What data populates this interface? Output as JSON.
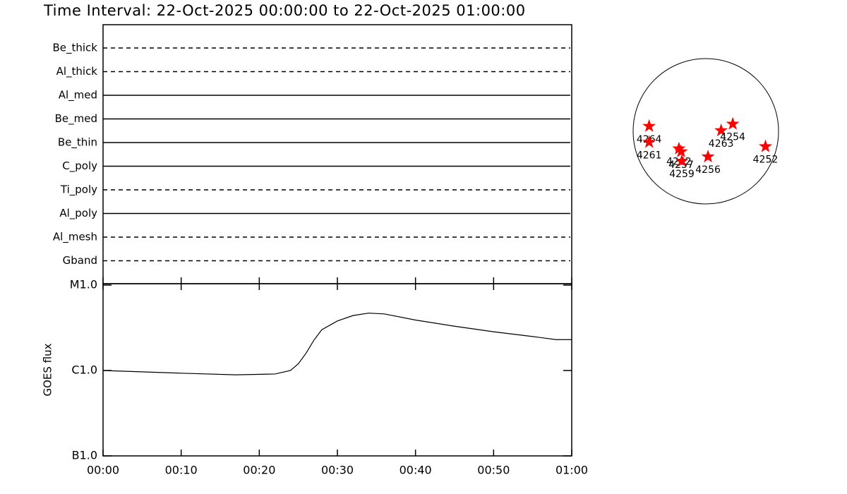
{
  "chart_data": [
    {
      "type": "filter_timeline",
      "title": "Time Interval: 22-Oct-2025 00:00:00 to 22-Oct-2025 01:00:00",
      "categories": [
        "Be_thick",
        "Al_thick",
        "Al_med",
        "Be_med",
        "Be_thin",
        "C_poly",
        "Ti_poly",
        "Al_poly",
        "Al_mesh",
        "Gband"
      ],
      "line_styles": [
        "dashed",
        "dashed",
        "solid",
        "solid",
        "solid",
        "solid",
        "dashed",
        "solid",
        "dashed",
        "dashed"
      ]
    },
    {
      "type": "line",
      "ylabel": "GOES flux",
      "log_scale": true,
      "x": [
        0,
        10,
        17,
        22,
        24,
        25,
        26,
        27,
        28,
        30,
        32,
        34,
        36,
        40,
        45,
        50,
        55,
        58,
        60
      ],
      "series": [
        {
          "color": "#000000",
          "values": [
            1e-06,
            9.3e-07,
            8.9e-07,
            9.1e-07,
            1e-06,
            1.2e-06,
            1.6e-06,
            2.27e-06,
            3e-06,
            3.8e-06,
            4.4e-06,
            4.7e-06,
            4.6e-06,
            3.9e-06,
            3.3e-06,
            2.84e-06,
            2.5e-06,
            2.3e-06,
            2.3e-06
          ]
        }
      ],
      "xlim": [
        0,
        60
      ],
      "xticks": [
        {
          "value": 0,
          "label": "00:00"
        },
        {
          "value": 10,
          "label": "00:10"
        },
        {
          "value": 20,
          "label": "00:20"
        },
        {
          "value": 30,
          "label": "00:30"
        },
        {
          "value": 40,
          "label": "00:40"
        },
        {
          "value": 50,
          "label": "00:50"
        },
        {
          "value": 60,
          "label": "01:00"
        }
      ],
      "ylim": [
        1e-07,
        1e-05
      ],
      "yticks": [
        {
          "value": 1e-07,
          "label": "B1.0"
        },
        {
          "value": 1e-06,
          "label": "C1.0"
        },
        {
          "value": 1e-05,
          "label": "M1.0"
        }
      ]
    },
    {
      "type": "scatter",
      "color": "#ff0000",
      "labels": [
        "4264",
        "4261",
        "4262",
        "4257",
        "4259",
        "4256",
        "4263",
        "4254",
        "4252"
      ],
      "x": [
        -0.78,
        -0.78,
        -0.37,
        -0.34,
        -0.33,
        0.03,
        0.21,
        0.37,
        0.82
      ],
      "values": [
        0.07,
        -0.15,
        -0.24,
        -0.28,
        -0.41,
        -0.35,
        0.01,
        0.1,
        -0.21
      ]
    }
  ]
}
